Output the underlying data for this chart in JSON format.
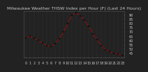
{
  "title": "Milwaukee Weather THSW Index per Hour (F) (Last 24 Hours)",
  "hours": [
    0,
    1,
    2,
    3,
    4,
    5,
    6,
    7,
    8,
    9,
    10,
    11,
    12,
    13,
    14,
    15,
    16,
    17,
    18,
    19,
    20,
    21,
    22,
    23
  ],
  "values": [
    63,
    65,
    63,
    60,
    57,
    54,
    53,
    56,
    62,
    70,
    80,
    90,
    93,
    89,
    84,
    77,
    68,
    61,
    54,
    49,
    47,
    45,
    44,
    42
  ],
  "line_color": "#dd0000",
  "marker_color": "#111111",
  "bg_color": "#222222",
  "plot_bg": "#222222",
  "grid_color": "#555555",
  "text_color": "#cccccc",
  "ylim_min": 40,
  "ylim_max": 95,
  "title_fontsize": 4.5,
  "tick_fontsize": 3.5,
  "yticks": [
    45,
    50,
    55,
    60,
    65,
    70,
    75,
    80,
    85,
    90
  ]
}
